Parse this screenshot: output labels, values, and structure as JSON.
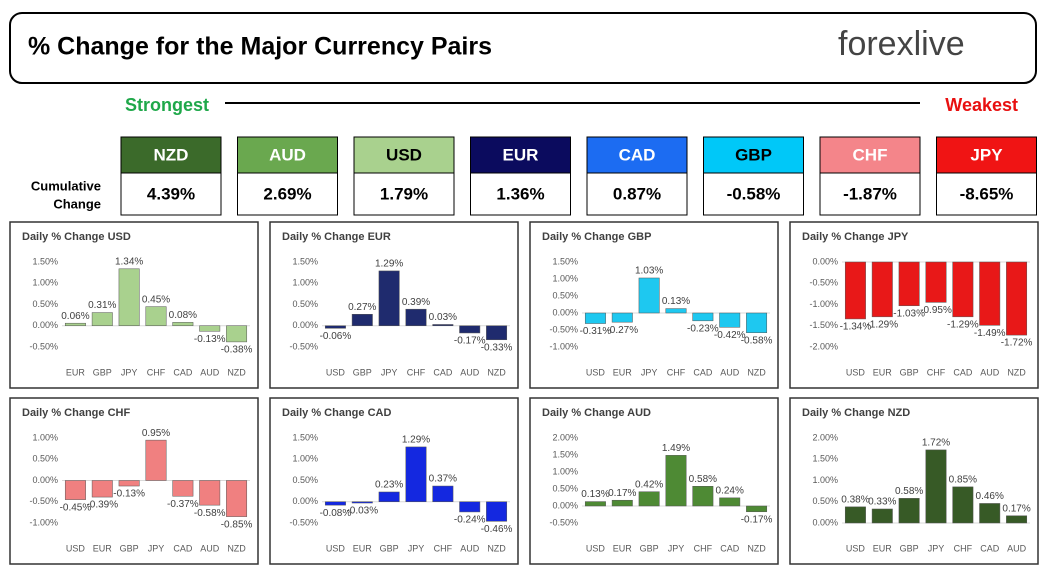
{
  "header": {
    "title": "% Change for the Major Currency Pairs",
    "logo": "forexlive"
  },
  "ranking": {
    "strongest": "Strongest",
    "weakest": "Weakest",
    "label_line1": "Cumulative",
    "label_line2": "Change",
    "currencies": [
      {
        "name": "NZD",
        "value": "4.39%",
        "color": "#3b6a2a",
        "text_color": "#ffffff"
      },
      {
        "name": "AUD",
        "value": "2.69%",
        "color": "#6aa84f",
        "text_color": "#ffffff"
      },
      {
        "name": "USD",
        "value": "1.79%",
        "color": "#a9d18e",
        "text_color": "#000000"
      },
      {
        "name": "EUR",
        "value": "1.36%",
        "color": "#0b0b5e",
        "text_color": "#ffffff"
      },
      {
        "name": "CAD",
        "value": "0.87%",
        "color": "#1c6cf2",
        "text_color": "#ffffff"
      },
      {
        "name": "GBP",
        "value": "-0.58%",
        "color": "#00c8f8",
        "text_color": "#000000"
      },
      {
        "name": "CHF",
        "value": "-1.87%",
        "color": "#f4858a",
        "text_color": "#ffffff"
      },
      {
        "name": "JPY",
        "value": "-8.65%",
        "color": "#f01414",
        "text_color": "#ffffff"
      }
    ]
  },
  "chart_data": [
    {
      "type": "bar",
      "title": "Daily % Change USD",
      "color": "#a9d18e",
      "categories": [
        "EUR",
        "GBP",
        "JPY",
        "CHF",
        "CAD",
        "AUD",
        "NZD"
      ],
      "values": [
        0.06,
        0.31,
        1.34,
        0.45,
        0.08,
        -0.13,
        -0.38
      ],
      "value_labels": [
        "0.06%",
        "0.31%",
        "1.34%",
        "0.45%",
        "0.08%",
        "-0.13%",
        "-0.38%"
      ],
      "ylim": [
        -0.5,
        1.5
      ],
      "yticks": [
        {
          "value": -0.5,
          "label": "-0.50%"
        },
        {
          "value": 0,
          "label": "0.00%"
        },
        {
          "value": 0.5,
          "label": "0.50%"
        },
        {
          "value": 1,
          "label": "1.00%"
        },
        {
          "value": 1.5,
          "label": "1.50%"
        }
      ]
    },
    {
      "type": "bar",
      "title": "Daily % Change EUR",
      "color": "#1f2b6e",
      "categories": [
        "USD",
        "GBP",
        "JPY",
        "CHF",
        "CAD",
        "AUD",
        "NZD"
      ],
      "values": [
        -0.06,
        0.27,
        1.29,
        0.39,
        0.03,
        -0.17,
        -0.33
      ],
      "value_labels": [
        "-0.06%",
        "0.27%",
        "1.29%",
        "0.39%",
        "0.03%",
        "-0.17%",
        "-0.33%"
      ],
      "ylim": [
        -0.5,
        1.5
      ],
      "yticks": [
        {
          "value": -0.5,
          "label": "-0.50%"
        },
        {
          "value": 0,
          "label": "0.00%"
        },
        {
          "value": 0.5,
          "label": "0.50%"
        },
        {
          "value": 1,
          "label": "1.00%"
        },
        {
          "value": 1.5,
          "label": "1.50%"
        }
      ]
    },
    {
      "type": "bar",
      "title": "Daily % Change GBP",
      "color": "#1ec8f0",
      "categories": [
        "USD",
        "EUR",
        "JPY",
        "CHF",
        "CAD",
        "AUD",
        "NZD"
      ],
      "values": [
        -0.31,
        -0.27,
        1.03,
        0.13,
        -0.23,
        -0.42,
        -0.58
      ],
      "value_labels": [
        "-0.31%",
        "-0.27%",
        "1.03%",
        "0.13%",
        "-0.23%",
        "-0.42%",
        "-0.58%"
      ],
      "ylim": [
        -1,
        1.5
      ],
      "yticks": [
        {
          "value": -1,
          "label": "-1.00%"
        },
        {
          "value": -0.5,
          "label": "-0.50%"
        },
        {
          "value": 0,
          "label": "0.00%"
        },
        {
          "value": 0.5,
          "label": "0.50%"
        },
        {
          "value": 1,
          "label": "1.00%"
        },
        {
          "value": 1.5,
          "label": "1.50%"
        }
      ]
    },
    {
      "type": "bar",
      "title": "Daily % Change JPY",
      "color": "#e81818",
      "categories": [
        "USD",
        "EUR",
        "GBP",
        "CHF",
        "CAD",
        "AUD",
        "NZD"
      ],
      "values": [
        -1.34,
        -1.29,
        -1.03,
        -0.95,
        -1.29,
        -1.49,
        -1.72
      ],
      "value_labels": [
        "-1.34%",
        "-1.29%",
        "-1.03%",
        "-0.95%",
        "-1.29%",
        "-1.49%",
        "-1.72%"
      ],
      "ylim": [
        -2,
        0
      ],
      "yticks": [
        {
          "value": -2,
          "label": "-2.00%"
        },
        {
          "value": -1.5,
          "label": "-1.50%"
        },
        {
          "value": -1,
          "label": "-1.00%"
        },
        {
          "value": -0.5,
          "label": "-0.50%"
        },
        {
          "value": 0,
          "label": "0.00%"
        }
      ]
    },
    {
      "type": "bar",
      "title": "Daily % Change CHF",
      "color": "#f08080",
      "categories": [
        "USD",
        "EUR",
        "GBP",
        "JPY",
        "CAD",
        "AUD",
        "NZD"
      ],
      "values": [
        -0.45,
        -0.39,
        -0.13,
        0.95,
        -0.37,
        -0.58,
        -0.85
      ],
      "value_labels": [
        "-0.45%",
        "-0.39%",
        "-0.13%",
        "0.95%",
        "-0.37%",
        "-0.58%",
        "-0.85%"
      ],
      "ylim": [
        -1,
        1
      ],
      "yticks": [
        {
          "value": -1,
          "label": "-1.00%"
        },
        {
          "value": -0.5,
          "label": "-0.50%"
        },
        {
          "value": 0,
          "label": "0.00%"
        },
        {
          "value": 0.5,
          "label": "0.50%"
        },
        {
          "value": 1,
          "label": "1.00%"
        }
      ]
    },
    {
      "type": "bar",
      "title": "Daily % Change CAD",
      "color": "#1428e0",
      "categories": [
        "USD",
        "EUR",
        "GBP",
        "JPY",
        "CHF",
        "AUD",
        "NZD"
      ],
      "values": [
        -0.08,
        -0.03,
        0.23,
        1.29,
        0.37,
        -0.24,
        -0.46
      ],
      "value_labels": [
        "-0.08%",
        "-0.03%",
        "0.23%",
        "1.29%",
        "0.37%",
        "-0.24%",
        "-0.46%"
      ],
      "ylim": [
        -0.5,
        1.5
      ],
      "yticks": [
        {
          "value": -0.5,
          "label": "-0.50%"
        },
        {
          "value": 0,
          "label": "0.00%"
        },
        {
          "value": 0.5,
          "label": "0.50%"
        },
        {
          "value": 1,
          "label": "1.00%"
        },
        {
          "value": 1.5,
          "label": "1.50%"
        }
      ]
    },
    {
      "type": "bar",
      "title": "Daily % Change AUD",
      "color": "#4e8a34",
      "categories": [
        "USD",
        "EUR",
        "GBP",
        "JPY",
        "CHF",
        "CAD",
        "NZD"
      ],
      "values": [
        0.13,
        0.17,
        0.42,
        1.49,
        0.58,
        0.24,
        -0.17
      ],
      "value_labels": [
        "0.13%",
        "0.17%",
        "0.42%",
        "1.49%",
        "0.58%",
        "0.24%",
        "-0.17%"
      ],
      "ylim": [
        -0.5,
        2
      ],
      "yticks": [
        {
          "value": -0.5,
          "label": "-0.50%"
        },
        {
          "value": 0,
          "label": "0.00%"
        },
        {
          "value": 0.5,
          "label": "0.50%"
        },
        {
          "value": 1,
          "label": "1.00%"
        },
        {
          "value": 1.5,
          "label": "1.50%"
        },
        {
          "value": 2,
          "label": "2.00%"
        }
      ]
    },
    {
      "type": "bar",
      "title": "Daily % Change NZD",
      "color": "#375a26",
      "categories": [
        "USD",
        "EUR",
        "GBP",
        "JPY",
        "CHF",
        "CAD",
        "AUD"
      ],
      "values": [
        0.38,
        0.33,
        0.58,
        1.72,
        0.85,
        0.46,
        0.17
      ],
      "value_labels": [
        "0.38%",
        "0.33%",
        "0.58%",
        "1.72%",
        "0.85%",
        "0.46%",
        "0.17%"
      ],
      "ylim": [
        0,
        2
      ],
      "yticks": [
        {
          "value": 0,
          "label": "0.00%"
        },
        {
          "value": 0.5,
          "label": "0.50%"
        },
        {
          "value": 1,
          "label": "1.00%"
        },
        {
          "value": 1.5,
          "label": "1.50%"
        },
        {
          "value": 2,
          "label": "2.00%"
        }
      ]
    }
  ]
}
